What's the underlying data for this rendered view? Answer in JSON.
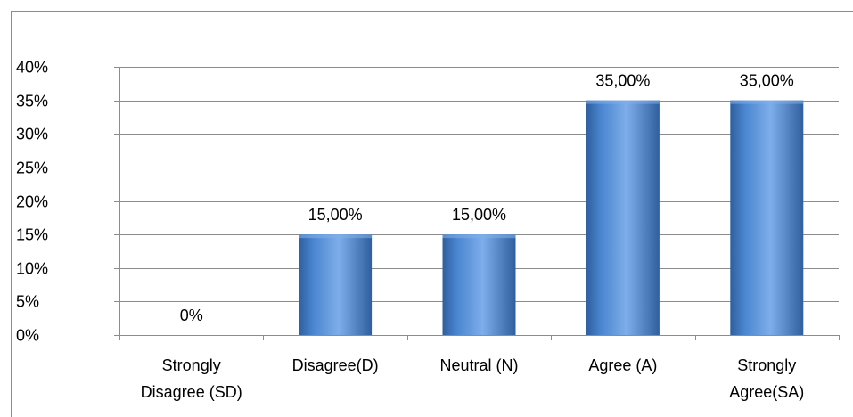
{
  "chart_data": {
    "type": "bar",
    "categories": [
      [
        "Strongly",
        "Disagree (SD)"
      ],
      [
        "Disagree(D)"
      ],
      [
        "Neutral (N)"
      ],
      [
        "Agree (A)"
      ],
      [
        "Strongly",
        "Agree(SA)"
      ]
    ],
    "values": [
      0,
      15,
      15,
      35,
      35
    ],
    "data_labels": [
      "0%",
      "15,00%",
      "15,00%",
      "35,00%",
      "35,00%"
    ],
    "ylim": [
      0,
      40
    ],
    "yticks": [
      0,
      5,
      10,
      15,
      20,
      25,
      30,
      35,
      40
    ],
    "ytick_labels": [
      "0%",
      "5%",
      "10%",
      "15%",
      "20%",
      "25%",
      "30%",
      "35%",
      "40%"
    ],
    "grid": true,
    "legend": "none",
    "title": "",
    "xlabel": "",
    "ylabel": "",
    "colors": {
      "bar_dark": "#2f5f9e",
      "bar_mid": "#4a86d0",
      "bar_light": "#7eaeea",
      "gridline": "#8c8c8c",
      "axis": "#8c8c8c",
      "border": "#8c8c8c"
    }
  }
}
